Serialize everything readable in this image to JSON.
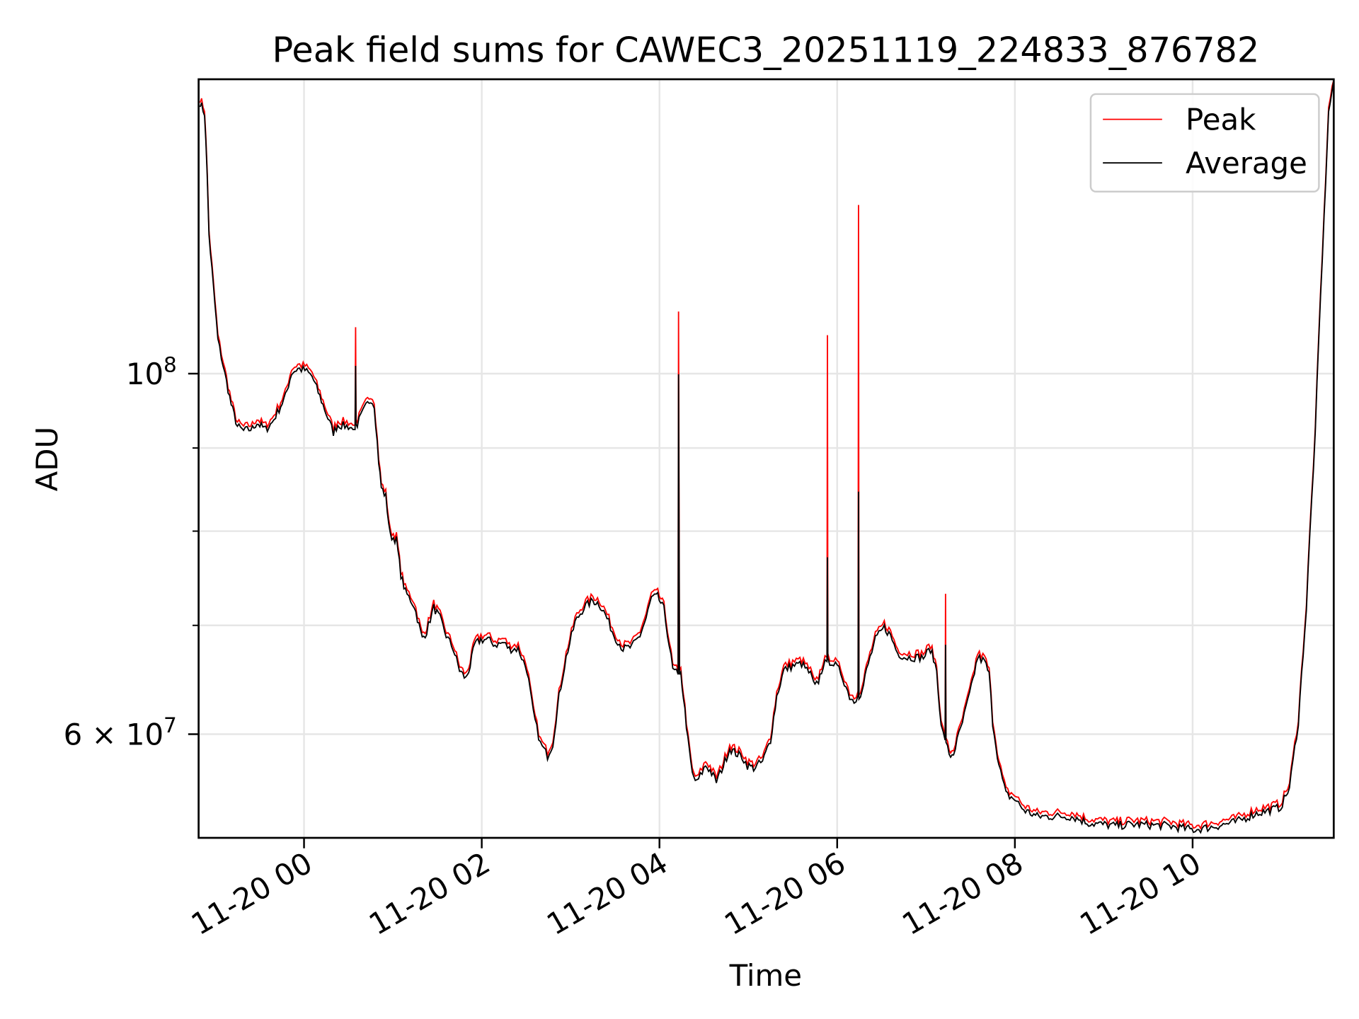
{
  "chart_data": {
    "type": "line",
    "title": "Peak field sums for CAWEC3_20251119_224833_876782",
    "xlabel": "Time",
    "ylabel": "ADU",
    "yscale": "log",
    "x_units": "hours relative to 11-20 00:00",
    "y_units": "millions of ADU",
    "xlim": [
      -1.19,
      11.6
    ],
    "ylim": [
      51.8,
      151.8
    ],
    "grid": true,
    "legend_position": "top-right",
    "xticks": [
      {
        "value": 0,
        "label": "11-20 00"
      },
      {
        "value": 2,
        "label": "11-20 02"
      },
      {
        "value": 4,
        "label": "11-20 04"
      },
      {
        "value": 6,
        "label": "11-20 06"
      },
      {
        "value": 8,
        "label": "11-20 08"
      },
      {
        "value": 10,
        "label": "11-20 10"
      }
    ],
    "yticks_major": [
      {
        "value": 100,
        "base": "10",
        "exp": "8",
        "mant": ""
      },
      {
        "value": 60,
        "base": "10",
        "exp": "7",
        "mant": "6 × "
      }
    ],
    "yticks_minor": [
      70,
      80,
      90
    ],
    "legend": [
      {
        "name": "Peak",
        "color": "#ff0000"
      },
      {
        "name": "Average",
        "color": "#000000"
      }
    ],
    "peak_ratio": 1.006,
    "average": [
      [
        -1.17,
        146.8
      ],
      [
        -1.12,
        144.6
      ],
      [
        -1.09,
        132.7
      ],
      [
        -1.07,
        121.7
      ],
      [
        -1.02,
        113.0
      ],
      [
        -0.97,
        104.9
      ],
      [
        -0.89,
        99.9
      ],
      [
        -0.82,
        95.7
      ],
      [
        -0.75,
        92.8
      ],
      [
        -0.68,
        92.2
      ],
      [
        -0.58,
        92.5
      ],
      [
        -0.53,
        93.3
      ],
      [
        -0.48,
        92.8
      ],
      [
        -0.43,
        92.4
      ],
      [
        -0.36,
        93.3
      ],
      [
        -0.28,
        95.1
      ],
      [
        -0.21,
        96.8
      ],
      [
        -0.14,
        100.1
      ],
      [
        -0.07,
        100.7
      ],
      [
        0.01,
        100.5
      ],
      [
        0.09,
        99.6
      ],
      [
        0.16,
        97.4
      ],
      [
        0.25,
        94.5
      ],
      [
        0.33,
        92.0
      ],
      [
        0.38,
        93.0
      ],
      [
        0.5,
        92.8
      ],
      [
        0.55,
        92.4
      ],
      [
        0.575,
        92.4
      ],
      [
        0.58,
        101.1
      ],
      [
        0.585,
        93.1
      ],
      [
        0.6,
        93.1
      ],
      [
        0.68,
        95.1
      ],
      [
        0.75,
        96.5
      ],
      [
        0.79,
        95.7
      ],
      [
        0.84,
        88.3
      ],
      [
        0.87,
        85.1
      ],
      [
        0.92,
        84.0
      ],
      [
        0.97,
        79.5
      ],
      [
        1.04,
        79.0
      ],
      [
        1.09,
        75.2
      ],
      [
        1.14,
        73.4
      ],
      [
        1.24,
        72.0
      ],
      [
        1.33,
        68.7
      ],
      [
        1.38,
        69.4
      ],
      [
        1.46,
        71.8
      ],
      [
        1.53,
        70.7
      ],
      [
        1.6,
        69.0
      ],
      [
        1.68,
        67.7
      ],
      [
        1.75,
        65.7
      ],
      [
        1.82,
        64.9
      ],
      [
        1.87,
        66.1
      ],
      [
        1.92,
        68.1
      ],
      [
        1.99,
        68.6
      ],
      [
        2.07,
        68.6
      ],
      [
        2.15,
        68.1
      ],
      [
        2.25,
        68.3
      ],
      [
        2.31,
        67.7
      ],
      [
        2.41,
        67.7
      ],
      [
        2.51,
        65.7
      ],
      [
        2.58,
        61.8
      ],
      [
        2.66,
        59.2
      ],
      [
        2.74,
        58.2
      ],
      [
        2.8,
        59.2
      ],
      [
        2.87,
        63.3
      ],
      [
        2.95,
        66.9
      ],
      [
        3.05,
        70.3
      ],
      [
        3.15,
        71.8
      ],
      [
        3.25,
        72.5
      ],
      [
        3.32,
        72.2
      ],
      [
        3.39,
        71.1
      ],
      [
        3.49,
        69.0
      ],
      [
        3.59,
        67.7
      ],
      [
        3.69,
        67.9
      ],
      [
        3.78,
        69.0
      ],
      [
        3.85,
        70.7
      ],
      [
        3.91,
        72.8
      ],
      [
        3.98,
        72.9
      ],
      [
        4.05,
        71.6
      ],
      [
        4.11,
        68.1
      ],
      [
        4.15,
        65.7
      ],
      [
        4.21,
        65.3
      ],
      [
        4.215,
        99.9
      ],
      [
        4.225,
        65.3
      ],
      [
        4.24,
        65.3
      ],
      [
        4.27,
        63.3
      ],
      [
        4.32,
        59.5
      ],
      [
        4.37,
        56.7
      ],
      [
        4.42,
        56.0
      ],
      [
        4.52,
        57.4
      ],
      [
        4.57,
        57.0
      ],
      [
        4.64,
        56.1
      ],
      [
        4.72,
        57.4
      ],
      [
        4.79,
        58.8
      ],
      [
        4.86,
        58.4
      ],
      [
        4.93,
        58.1
      ],
      [
        4.99,
        57.4
      ],
      [
        5.06,
        57.2
      ],
      [
        5.16,
        57.7
      ],
      [
        5.25,
        59.5
      ],
      [
        5.32,
        63.3
      ],
      [
        5.4,
        65.7
      ],
      [
        5.5,
        66.1
      ],
      [
        5.6,
        66.3
      ],
      [
        5.7,
        65.3
      ],
      [
        5.75,
        64.1
      ],
      [
        5.79,
        64.7
      ],
      [
        5.84,
        66.1
      ],
      [
        5.885,
        66.5
      ],
      [
        5.89,
        77.1
      ],
      [
        5.895,
        66.5
      ],
      [
        5.94,
        66.5
      ],
      [
        6.04,
        65.5
      ],
      [
        6.14,
        63.3
      ],
      [
        6.19,
        62.9
      ],
      [
        6.235,
        63.4
      ],
      [
        6.24,
        84.6
      ],
      [
        6.245,
        63.4
      ],
      [
        6.28,
        63.7
      ],
      [
        6.33,
        65.7
      ],
      [
        6.43,
        68.6
      ],
      [
        6.53,
        69.8
      ],
      [
        6.6,
        69.0
      ],
      [
        6.68,
        67.3
      ],
      [
        6.77,
        66.9
      ],
      [
        6.87,
        66.9
      ],
      [
        6.97,
        66.9
      ],
      [
        7.05,
        67.7
      ],
      [
        7.12,
        65.7
      ],
      [
        7.17,
        60.6
      ],
      [
        7.215,
        59.5
      ],
      [
        7.22,
        68.1
      ],
      [
        7.225,
        59.5
      ],
      [
        7.26,
        58.1
      ],
      [
        7.31,
        58.4
      ],
      [
        7.41,
        61.0
      ],
      [
        7.51,
        64.1
      ],
      [
        7.58,
        66.9
      ],
      [
        7.66,
        66.5
      ],
      [
        7.71,
        65.3
      ],
      [
        7.75,
        61.0
      ],
      [
        7.82,
        57.4
      ],
      [
        7.9,
        55.1
      ],
      [
        8.0,
        54.7
      ],
      [
        8.1,
        53.9
      ],
      [
        8.25,
        53.4
      ],
      [
        8.44,
        53.4
      ],
      [
        8.64,
        53.4
      ],
      [
        8.83,
        52.9
      ],
      [
        9.13,
        52.7
      ],
      [
        9.32,
        52.8
      ],
      [
        9.72,
        52.7
      ],
      [
        10.01,
        52.4
      ],
      [
        10.21,
        52.6
      ],
      [
        10.5,
        53.0
      ],
      [
        10.7,
        53.6
      ],
      [
        10.89,
        53.9
      ],
      [
        10.99,
        54.1
      ],
      [
        11.09,
        55.6
      ],
      [
        11.19,
        61.0
      ],
      [
        11.28,
        71.6
      ],
      [
        11.38,
        91.6
      ],
      [
        11.48,
        124.7
      ],
      [
        11.53,
        144.6
      ],
      [
        11.59,
        151.8
      ]
    ],
    "peak_spikes": [
      {
        "t": 0.58,
        "value": 106.8
      },
      {
        "t": 4.215,
        "value": 109.2
      },
      {
        "t": 5.89,
        "value": 105.6
      },
      {
        "t": 6.24,
        "value": 127.0
      },
      {
        "t": 7.22,
        "value": 73.2
      }
    ]
  }
}
